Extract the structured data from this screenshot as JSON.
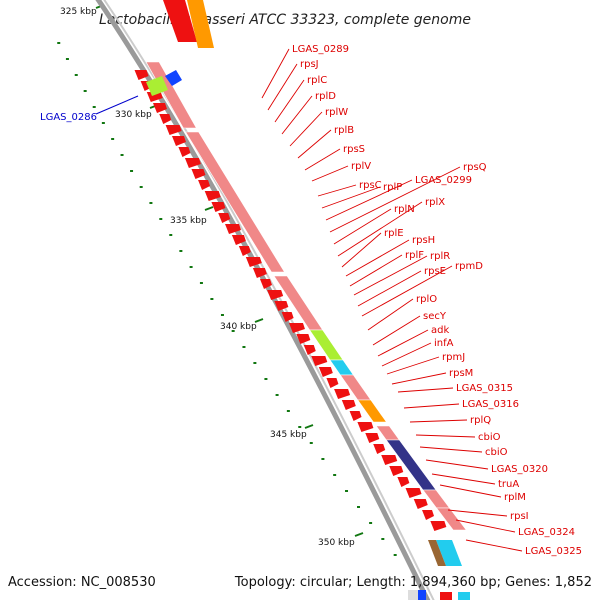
{
  "title": "Lactobacillus gasseri ATCC 33323, complete genome",
  "footer": {
    "accession": "Accession: NC_008530",
    "topology": "Topology: circular; Length: 1,894,360 bp; Genes: 1,852"
  },
  "axis_labels": [
    "325 kbp",
    "330 kbp",
    "335 kbp",
    "340 kbp",
    "345 kbp",
    "350 kbp"
  ],
  "colors": {
    "backbone": "#9a9a9a",
    "red_gene": "#ee1111",
    "pink_gene": "#f08888",
    "orange_gene": "#ff9900",
    "green_gene": "#aaee33",
    "cyan_gene": "#22ccee",
    "navy_gene": "#333388",
    "blue_label": "#0000cc",
    "red_label": "#dd0000",
    "tick_green": "#117711"
  },
  "left_label": "LGAS_0286",
  "gene_labels": [
    "LGAS_0289",
    "rpsJ",
    "rplC",
    "rplD",
    "rplW",
    "rplB",
    "rpsS",
    "rplV",
    "rpsC",
    "rplP",
    "LGAS_0299",
    "rpsQ",
    "rplN",
    "rplX",
    "rplE",
    "rpsH",
    "rplF",
    "rplR",
    "rpsE",
    "rpmD",
    "rplO",
    "secY",
    "adk",
    "infA",
    "rpmJ",
    "rpsM",
    "LGAS_0315",
    "LGAS_0316",
    "rplQ",
    "cbiO",
    "cbiO",
    "LGAS_0320",
    "truA",
    "rplM",
    "rpsI",
    "LGAS_0324",
    "LGAS_0325"
  ]
}
